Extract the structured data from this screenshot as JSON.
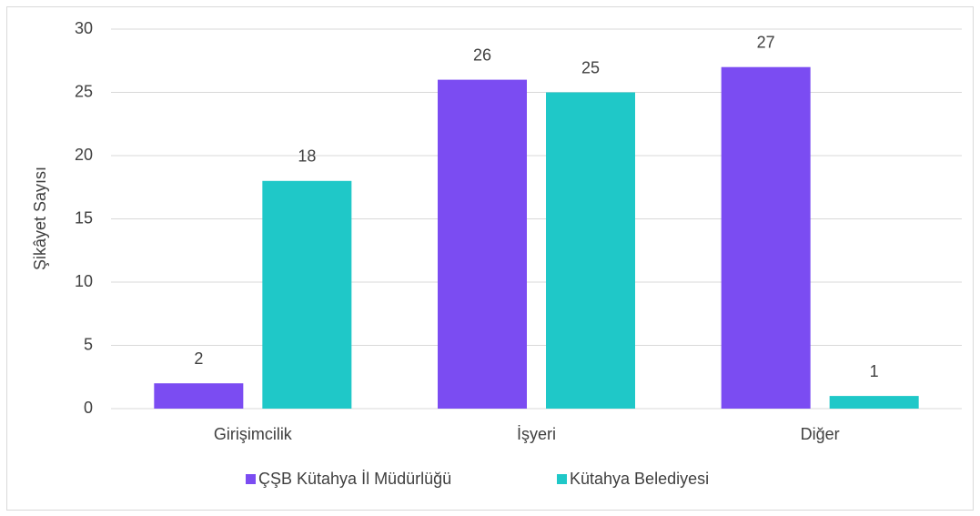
{
  "chart_data": {
    "type": "bar",
    "categories": [
      "Girişimcilik",
      "İşyeri",
      "Diğer"
    ],
    "y_label": "Şikâyet Sayısı",
    "series": [
      {
        "name": "ÇŞB Kütahya İl Müdürlüğü",
        "color": "#7b4cf2",
        "values": [
          2,
          26,
          27
        ]
      },
      {
        "name": "Kütahya Belediyesi",
        "color": "#1fc8c8",
        "values": [
          18,
          25,
          1
        ]
      }
    ],
    "ylim": [
      0,
      30
    ],
    "yticks": [
      0,
      5,
      10,
      15,
      20,
      25,
      30
    ],
    "grid": true,
    "legend": "bottom"
  }
}
